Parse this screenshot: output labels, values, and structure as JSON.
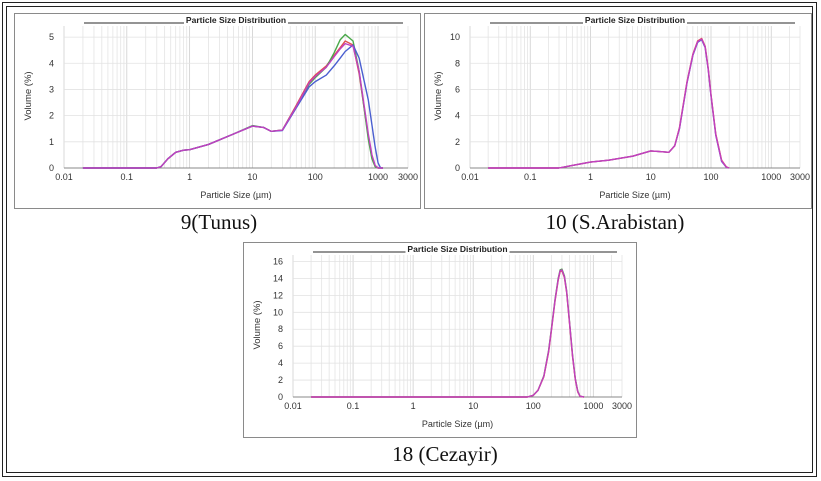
{
  "chart_data": [
    {
      "type": "line",
      "title": "Particle Size Distribution",
      "xlabel": "Particle Size (µm)",
      "ylabel": "Volume (%)",
      "xscale": "log",
      "xlim": [
        0.01,
        3000
      ],
      "ylim": [
        0,
        5.5
      ],
      "xticks": [
        "0.01",
        "0.1",
        "1",
        "10",
        "100",
        "1000",
        "3000"
      ],
      "yticks": [
        "0",
        "1",
        "2",
        "3",
        "4",
        "5"
      ],
      "grid": true,
      "caption": "9(Tunus)",
      "series": [
        {
          "color": "#e05050",
          "x": [
            0.02,
            0.3,
            0.35,
            0.45,
            0.6,
            0.8,
            1,
            2,
            5,
            10,
            15,
            20,
            30,
            50,
            80,
            100,
            150,
            200,
            250,
            300,
            400,
            500,
            700,
            800,
            900,
            1000,
            1200
          ],
          "y": [
            0,
            0,
            0.05,
            0.35,
            0.6,
            0.68,
            0.7,
            0.9,
            1.3,
            1.6,
            1.55,
            1.4,
            1.45,
            2.4,
            3.3,
            3.55,
            3.9,
            4.3,
            4.6,
            4.85,
            4.7,
            3.6,
            1.2,
            0.4,
            0.08,
            0,
            0
          ]
        },
        {
          "color": "#4aa84a",
          "x": [
            0.02,
            0.3,
            0.35,
            0.45,
            0.6,
            0.8,
            1,
            2,
            5,
            10,
            15,
            20,
            30,
            50,
            80,
            100,
            150,
            200,
            250,
            300,
            400,
            500,
            700,
            800,
            900,
            1000,
            1200
          ],
          "y": [
            0,
            0,
            0.05,
            0.35,
            0.6,
            0.68,
            0.7,
            0.9,
            1.3,
            1.62,
            1.55,
            1.4,
            1.45,
            2.35,
            3.2,
            3.45,
            3.85,
            4.4,
            4.9,
            5.1,
            4.85,
            3.7,
            1.1,
            0.35,
            0.05,
            0,
            0
          ]
        },
        {
          "color": "#4a5fd0",
          "x": [
            0.02,
            0.3,
            0.35,
            0.45,
            0.6,
            0.8,
            1,
            2,
            5,
            10,
            15,
            20,
            30,
            50,
            80,
            100,
            150,
            200,
            250,
            300,
            400,
            500,
            700,
            900,
            1000,
            1100,
            1200
          ],
          "y": [
            0,
            0,
            0.05,
            0.35,
            0.6,
            0.68,
            0.7,
            0.9,
            1.3,
            1.6,
            1.55,
            1.4,
            1.43,
            2.3,
            3.1,
            3.3,
            3.55,
            3.9,
            4.2,
            4.45,
            4.7,
            4.2,
            2.6,
            0.8,
            0.2,
            0,
            0
          ]
        },
        {
          "color": "#c040c0",
          "x": [
            0.02,
            0.3,
            0.35,
            0.45,
            0.6,
            0.8,
            1,
            2,
            5,
            10,
            15,
            20,
            30,
            50,
            80,
            100,
            150,
            200,
            250,
            300,
            400,
            500,
            700,
            800,
            900,
            1000,
            1200
          ],
          "y": [
            0,
            0,
            0.05,
            0.35,
            0.6,
            0.68,
            0.7,
            0.9,
            1.3,
            1.6,
            1.55,
            1.4,
            1.45,
            2.35,
            3.25,
            3.5,
            3.85,
            4.25,
            4.55,
            4.75,
            4.65,
            3.7,
            1.3,
            0.5,
            0.1,
            0,
            0
          ]
        }
      ]
    },
    {
      "type": "line",
      "title": "Particle Size Distribution",
      "xlabel": "Particle Size (µm)",
      "ylabel": "Volume (%)",
      "xscale": "log",
      "xlim": [
        0.01,
        3000
      ],
      "ylim": [
        0,
        11
      ],
      "xticks": [
        "0.01",
        "0.1",
        "1",
        "10",
        "100",
        "1000",
        "3000"
      ],
      "yticks": [
        "0",
        "2",
        "4",
        "6",
        "8",
        "10"
      ],
      "grid": true,
      "caption": "10 (S.Arabistan)",
      "series": [
        {
          "color": "#4a5fd0",
          "x": [
            0.02,
            0.3,
            0.5,
            1,
            2,
            5,
            10,
            15,
            20,
            25,
            30,
            40,
            50,
            60,
            70,
            80,
            90,
            100,
            120,
            150,
            180,
            200
          ],
          "y": [
            0,
            0,
            0.2,
            0.45,
            0.6,
            0.9,
            1.3,
            1.25,
            1.2,
            1.7,
            3,
            6.5,
            8.6,
            9.6,
            9.8,
            9.2,
            7.5,
            5.5,
            2.5,
            0.5,
            0.05,
            0
          ]
        },
        {
          "color": "#e05050",
          "x": [
            0.02,
            0.3,
            0.5,
            1,
            2,
            5,
            10,
            15,
            20,
            25,
            30,
            40,
            50,
            60,
            70,
            80,
            90,
            100,
            120,
            150,
            180,
            200
          ],
          "y": [
            0,
            0,
            0.2,
            0.45,
            0.6,
            0.9,
            1.3,
            1.25,
            1.2,
            1.7,
            3.1,
            6.6,
            8.7,
            9.7,
            9.9,
            9.3,
            7.6,
            5.6,
            2.6,
            0.6,
            0.08,
            0
          ]
        },
        {
          "color": "#c040c0",
          "x": [
            0.02,
            0.3,
            0.5,
            1,
            2,
            5,
            10,
            15,
            20,
            25,
            30,
            40,
            50,
            60,
            70,
            80,
            90,
            100,
            120,
            150,
            180,
            200
          ],
          "y": [
            0,
            0,
            0.2,
            0.45,
            0.6,
            0.9,
            1.3,
            1.25,
            1.2,
            1.7,
            3.05,
            6.55,
            8.65,
            9.65,
            9.85,
            9.25,
            7.55,
            5.55,
            2.55,
            0.55,
            0.06,
            0
          ]
        }
      ]
    },
    {
      "type": "line",
      "title": "Particle Size Distribution",
      "xlabel": "Particle Size (µm)",
      "ylabel": "Volume (%)",
      "xscale": "log",
      "xlim": [
        0.01,
        3000
      ],
      "ylim": [
        0,
        17
      ],
      "xticks": [
        "0.01",
        "0.1",
        "1",
        "10",
        "100",
        "1000",
        "3000"
      ],
      "yticks": [
        "0",
        "2",
        "4",
        "6",
        "8",
        "10",
        "12",
        "14",
        "16"
      ],
      "grid": true,
      "caption": "18 (Cezayir)",
      "series": [
        {
          "color": "#4aa84a",
          "x": [
            0.02,
            80,
            100,
            120,
            150,
            180,
            200,
            230,
            260,
            280,
            300,
            330,
            360,
            400,
            450,
            500,
            550,
            600,
            700
          ],
          "y": [
            0,
            0,
            0.2,
            0.8,
            2.5,
            5.5,
            8,
            11.5,
            14,
            15,
            15.1,
            14.3,
            12.5,
            9,
            5,
            2.2,
            0.7,
            0.1,
            0
          ]
        },
        {
          "color": "#e05050",
          "x": [
            0.02,
            80,
            100,
            120,
            150,
            180,
            200,
            230,
            260,
            280,
            300,
            330,
            360,
            400,
            450,
            500,
            550,
            600,
            700
          ],
          "y": [
            0,
            0,
            0.2,
            0.8,
            2.4,
            5.3,
            7.8,
            11.3,
            13.8,
            14.8,
            14.9,
            14.1,
            12.3,
            8.8,
            4.8,
            2.1,
            0.6,
            0.08,
            0
          ]
        },
        {
          "color": "#c040c0",
          "x": [
            0.02,
            80,
            100,
            120,
            150,
            180,
            200,
            230,
            260,
            280,
            300,
            330,
            360,
            400,
            450,
            500,
            550,
            600,
            700
          ],
          "y": [
            0,
            0,
            0.2,
            0.8,
            2.45,
            5.4,
            7.9,
            11.4,
            13.9,
            14.9,
            15,
            14.2,
            12.4,
            8.9,
            4.9,
            2.15,
            0.65,
            0.09,
            0
          ]
        }
      ]
    }
  ]
}
